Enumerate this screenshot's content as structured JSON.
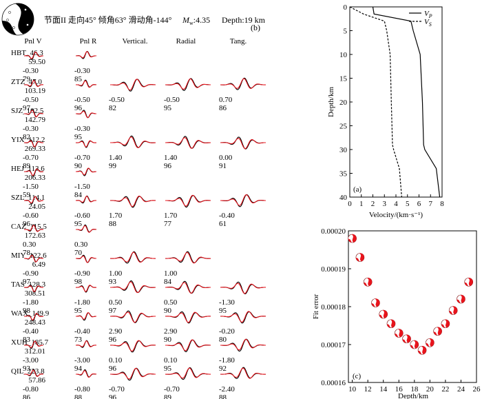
{
  "panel_b": {
    "title": "节面II  走向45°  倾角63°  滑动角-144°",
    "magnitude_prefix": "M",
    "magnitude_sub": "w",
    "magnitude_value": ":4.35",
    "depth": "Depth:19 km",
    "label": "(b)",
    "columns": [
      "Pnl V",
      "Pnl R",
      "Vertical.",
      "Radial",
      "Tang."
    ],
    "stations": [
      {
        "name": "HBT_46.3",
        "dist": "59.50",
        "cells": [
          {
            "s": "-0.30",
            "c": "79"
          },
          {
            "s": "-0.30",
            "c": "85"
          },
          null,
          null,
          null
        ]
      },
      {
        "name": "ZTZ_47.0",
        "dist": "103.19",
        "cells": [
          {
            "s": "-0.50",
            "c": "97"
          },
          {
            "s": "-0.50",
            "c": "96"
          },
          {
            "s": "-0.50",
            "c": "82"
          },
          {
            "s": "-0.50",
            "c": "95"
          },
          {
            "s": "0.70",
            "c": "86"
          }
        ]
      },
      {
        "name": "SJZ_102.5",
        "dist": "142.79",
        "cells": [
          {
            "s": "-0.30",
            "c": "82"
          },
          {
            "s": "-0.30",
            "c": "95"
          },
          null,
          null,
          null
        ]
      },
      {
        "name": "YIX_112.2",
        "dist": "269.33",
        "cells": [
          {
            "s": "-0.70",
            "c": "89"
          },
          {
            "s": "-0.70",
            "c": "90"
          },
          {
            "s": "1.40",
            "c": "99"
          },
          {
            "s": "1.40",
            "c": "96"
          },
          {
            "s": "0.00",
            "c": "91"
          }
        ]
      },
      {
        "name": "HEJ_113.6",
        "dist": "206.33",
        "cells": [
          {
            "s": "-1.50",
            "c": "59"
          },
          {
            "s": "-1.50",
            "c": "84"
          },
          null,
          null,
          null
        ]
      },
      {
        "name": "SZL_114.1",
        "dist": "24.05",
        "cells": [
          {
            "s": "-0.60",
            "c": "96"
          },
          {
            "s": "-0.60",
            "c": "95"
          },
          {
            "s": "1.70",
            "c": "88"
          },
          {
            "s": "1.70",
            "c": "77"
          },
          {
            "s": "-0.40",
            "c": "61"
          }
        ]
      },
      {
        "name": "CAZ_115.5",
        "dist": "172.63",
        "cells": [
          {
            "s": "0.30",
            "c": "78"
          },
          {
            "s": "0.30",
            "c": "70"
          },
          null,
          null,
          null
        ]
      },
      {
        "name": "MIY_122.6",
        "dist": "6.49",
        "cells": [
          {
            "s": "-0.90",
            "c": "97"
          },
          {
            "s": "-0.90",
            "c": "98"
          },
          {
            "s": "1.00",
            "c": "93"
          },
          {
            "s": "1.00",
            "c": "84"
          },
          null
        ]
      },
      {
        "name": "TAS_128.3",
        "dist": "308.51",
        "cells": [
          {
            "s": "-1.80",
            "c": "98"
          },
          {
            "s": "-1.80",
            "c": "95"
          },
          {
            "s": "0.50",
            "c": "97"
          },
          {
            "s": "0.50",
            "c": "90"
          },
          {
            "s": "-1.30",
            "c": "95"
          }
        ]
      },
      {
        "name": "WAX_149.9",
        "dist": "248.43",
        "cells": [
          {
            "s": "-0.40",
            "c": "83"
          },
          {
            "s": "-0.40",
            "c": "73"
          },
          {
            "s": "2.90",
            "c": "96"
          },
          {
            "s": "2.90",
            "c": "90"
          },
          {
            "s": "-0.20",
            "c": "80"
          }
        ]
      },
      {
        "name": "XUH_185.7",
        "dist": "312.01",
        "cells": [
          {
            "s": "-3.00",
            "c": "93"
          },
          {
            "s": "-3.00",
            "c": "94"
          },
          {
            "s": "0.10",
            "c": "96"
          },
          {
            "s": "0.10",
            "c": "95"
          },
          {
            "s": "-1.80",
            "c": "92"
          }
        ]
      },
      {
        "name": "QIL_223.8",
        "dist": "57.86",
        "cells": [
          {
            "s": "-0.80",
            "c": "86"
          },
          {
            "s": "-0.80",
            "c": "88"
          },
          {
            "s": "-0.70",
            "c": "96"
          },
          {
            "s": "-0.70",
            "c": "89"
          },
          {
            "s": "-2.40",
            "c": "88"
          }
        ]
      }
    ]
  },
  "chart_data": [
    {
      "type": "line",
      "label": "(a)",
      "xlabel": "Velocity/(km·s⁻¹)",
      "ylabel": "Depth/km",
      "xlim": [
        0,
        8
      ],
      "ylim": [
        40,
        0
      ],
      "xticks": [
        0,
        1,
        2,
        3,
        4,
        5,
        6,
        7,
        8
      ],
      "yticks": [
        0,
        5,
        10,
        15,
        20,
        25,
        30,
        35,
        40
      ],
      "legend": "top-right",
      "series": [
        {
          "name": "V",
          "sub": "P",
          "style": "solid",
          "points": [
            [
              2.0,
              0
            ],
            [
              2.1,
              1.5
            ],
            [
              5.3,
              3
            ],
            [
              5.5,
              5
            ],
            [
              6.1,
              10
            ],
            [
              6.3,
              20
            ],
            [
              6.4,
              29
            ],
            [
              6.5,
              30
            ],
            [
              7.5,
              34
            ],
            [
              7.8,
              40
            ]
          ]
        },
        {
          "name": "V",
          "sub": "S",
          "style": "dashed",
          "points": [
            [
              0,
              0
            ],
            [
              1.2,
              1.5
            ],
            [
              3.0,
              3
            ],
            [
              3.2,
              5
            ],
            [
              3.5,
              10
            ],
            [
              3.6,
              20
            ],
            [
              3.7,
              29
            ],
            [
              3.8,
              30
            ],
            [
              4.3,
              34
            ],
            [
              4.5,
              40
            ]
          ]
        }
      ]
    },
    {
      "type": "scatter",
      "label": "(c)",
      "xlabel": "Depth/km",
      "ylabel": "Fit error",
      "xlim": [
        9.5,
        26
      ],
      "ylim": [
        0.00016,
        0.0002
      ],
      "xticks": [
        10,
        12,
        14,
        16,
        18,
        20,
        22,
        24,
        26
      ],
      "yticks": [
        0.00016,
        0.00017,
        0.00018,
        0.00019,
        0.0002
      ],
      "ytick_labels": [
        "0.00016",
        "0.00017",
        "0.00018",
        "0.00019",
        "0.00020"
      ],
      "marker_color": "#e8141c",
      "x": [
        10,
        11,
        12,
        13,
        14,
        15,
        16,
        17,
        18,
        19,
        20,
        21,
        22,
        23,
        24,
        25
      ],
      "y": [
        0.000198,
        0.000193,
        0.0001865,
        0.000181,
        0.000178,
        0.0001755,
        0.000173,
        0.0001715,
        0.00017,
        0.0001685,
        0.0001705,
        0.0001735,
        0.0001755,
        0.000179,
        0.000182,
        0.0001865
      ]
    }
  ]
}
